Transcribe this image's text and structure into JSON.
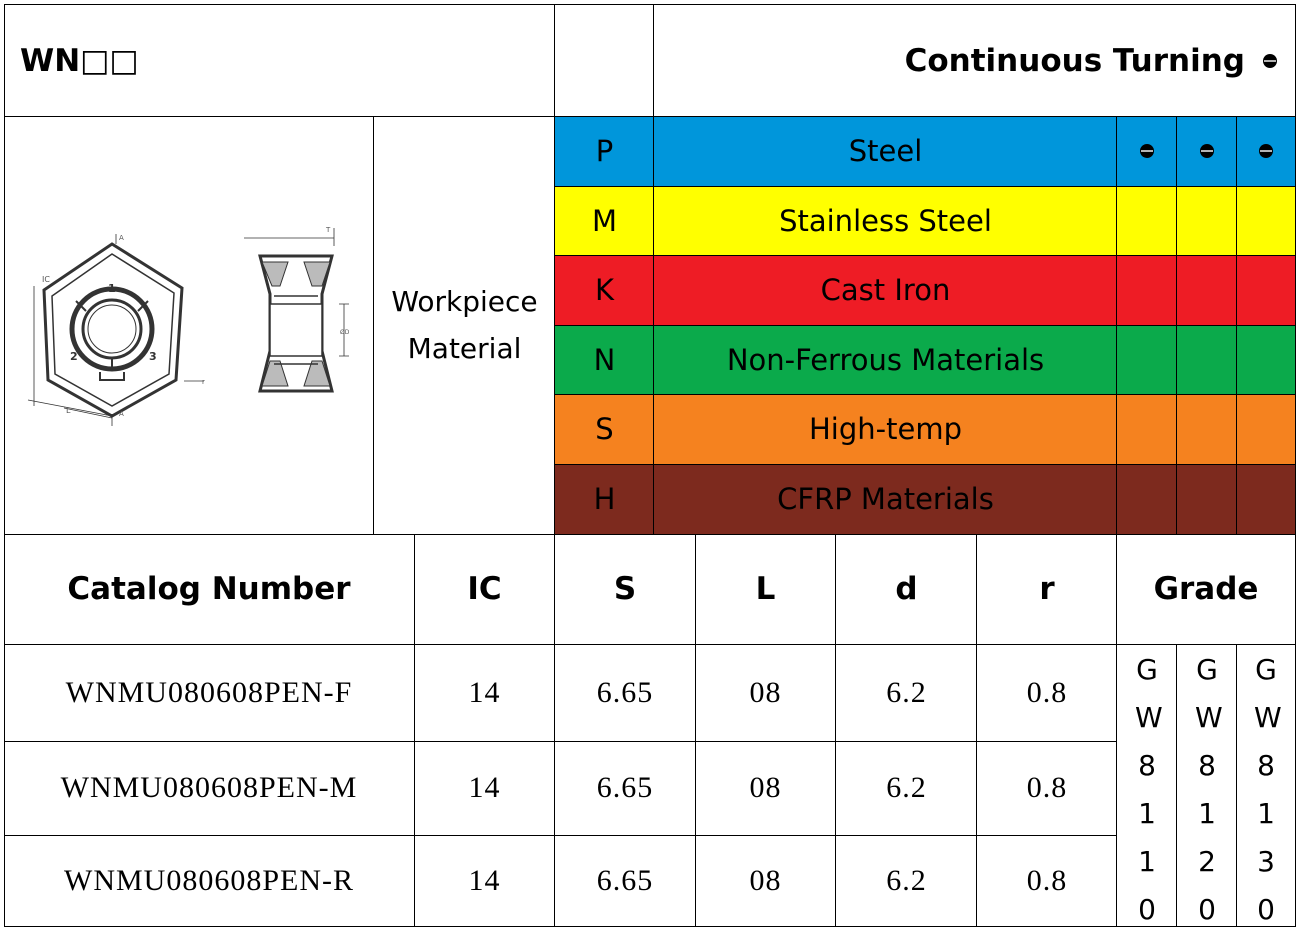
{
  "header": {
    "series": "WN□□",
    "operation": "Continuous Turning"
  },
  "workpiece_label_line1": "Workpiece",
  "workpiece_label_line2": "Material",
  "materials": [
    {
      "code": "P",
      "name": "Steel",
      "color": "#0096DB",
      "marks": [
        true,
        true,
        true
      ]
    },
    {
      "code": "M",
      "name": "Stainless Steel",
      "color": "#FFFF00",
      "marks": [
        false,
        false,
        false
      ]
    },
    {
      "code": "K",
      "name": "Cast Iron",
      "color": "#EE1C25",
      "marks": [
        false,
        false,
        false
      ]
    },
    {
      "code": "N",
      "name": "Non-Ferrous Materials",
      "color": "#0BAA4B",
      "marks": [
        false,
        false,
        false
      ]
    },
    {
      "code": "S",
      "name": "High-temp",
      "color": "#F5821F",
      "marks": [
        false,
        false,
        false
      ]
    },
    {
      "code": "H",
      "name": "CFRP Materials",
      "color": "#7D2A1E",
      "marks": [
        false,
        false,
        false
      ]
    }
  ],
  "columns": {
    "catalog": "Catalog Number",
    "ic": "IC",
    "s": "S",
    "l": "L",
    "d": "d",
    "r": "r",
    "grade": "Grade"
  },
  "rows": [
    {
      "catalog": "WNMU080608PEN-F",
      "ic": "14",
      "s": "6.65",
      "l": "08",
      "d": "6.2",
      "r": "0.8"
    },
    {
      "catalog": "WNMU080608PEN-M",
      "ic": "14",
      "s": "6.65",
      "l": "08",
      "d": "6.2",
      "r": "0.8"
    },
    {
      "catalog": "WNMU080608PEN-R",
      "ic": "14",
      "s": "6.65",
      "l": "08",
      "d": "6.2",
      "r": "0.8"
    }
  ],
  "grades": [
    "GW8110",
    "GW8120",
    "GW8130"
  ],
  "drawing_labels": {
    "ic": "IC",
    "l": "L",
    "t": "T",
    "d": "ØD",
    "r": "r",
    "a": "A",
    "corner1": "1",
    "corner2": "2",
    "corner3": "3"
  }
}
